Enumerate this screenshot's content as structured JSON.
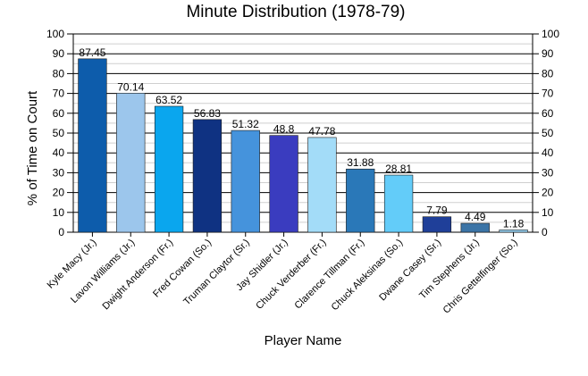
{
  "chart_data": {
    "type": "bar",
    "title": "Minute Distribution (1978-79)",
    "xlabel": "Player Name",
    "ylabel": "% of Time on Court",
    "ylim": [
      0,
      100
    ],
    "yticks": [
      0,
      10,
      20,
      30,
      40,
      50,
      60,
      70,
      80,
      90,
      100
    ],
    "ytick_labels": [
      "0",
      "10",
      "20",
      "30",
      "40",
      "50",
      "60",
      "70",
      "80",
      "90",
      "100"
    ],
    "grid": true,
    "secondary_axis": true,
    "categories": [
      "Kyle Macy (Jr.)",
      "Lavon Williams (Jr.)",
      "Dwight Anderson (Fr.)",
      "Fred Cowan (So.)",
      "Truman Claytor (Sr.)",
      "Jay Shidler (Jr.)",
      "Chuck Verderber (Fr.)",
      "Clarence Tillman (Fr.)",
      "Chuck Aleksinas (So.)",
      "Dwane Casey (Sr.)",
      "Tim Stephens (Jr.)",
      "Chris Gettelfinger (So.)"
    ],
    "values": [
      87.45,
      70.14,
      63.52,
      56.83,
      51.32,
      48.8,
      47.78,
      31.88,
      28.81,
      7.79,
      4.49,
      1.18
    ],
    "value_labels": [
      "87.45",
      "70.14",
      "63.52",
      "56.83",
      "51.32",
      "48.8",
      "47.78",
      "31.88",
      "28.81",
      "7.79",
      "4.49",
      "1.18"
    ],
    "colors": [
      "#0d5cab",
      "#9cc6ec",
      "#0aa6ee",
      "#0f3282",
      "#4593dc",
      "#3a3cbf",
      "#a3dcf8",
      "#2a78b8",
      "#63ccf9",
      "#1f3f99",
      "#3b74a6",
      "#99d3f3"
    ]
  }
}
